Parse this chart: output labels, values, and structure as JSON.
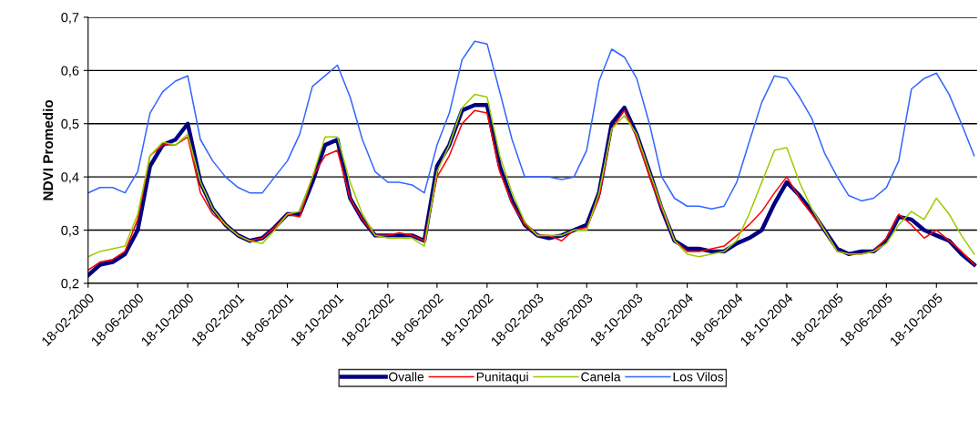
{
  "chart_data": {
    "type": "line",
    "ylabel": "NDVI Promedio",
    "x": [
      "2000-02-18",
      "2000-03-18",
      "2000-04-18",
      "2000-05-18",
      "2000-06-18",
      "2000-07-18",
      "2000-08-18",
      "2000-09-18",
      "2000-10-18",
      "2000-11-18",
      "2000-12-18",
      "2001-01-18",
      "2001-02-18",
      "2001-03-18",
      "2001-04-18",
      "2001-05-18",
      "2001-06-18",
      "2001-07-18",
      "2001-08-18",
      "2001-09-18",
      "2001-10-18",
      "2001-11-18",
      "2001-12-18",
      "2002-01-18",
      "2002-02-18",
      "2002-03-18",
      "2002-04-18",
      "2002-05-18",
      "2002-06-18",
      "2002-07-18",
      "2002-08-18",
      "2002-09-18",
      "2002-10-18",
      "2002-11-18",
      "2002-12-18",
      "2003-01-18",
      "2003-02-18",
      "2003-03-18",
      "2003-04-18",
      "2003-05-18",
      "2003-06-18",
      "2003-07-18",
      "2003-08-18",
      "2003-09-18",
      "2003-10-18",
      "2003-11-18",
      "2003-12-18",
      "2004-01-18",
      "2004-02-18",
      "2004-03-18",
      "2004-04-18",
      "2004-05-18",
      "2004-06-18",
      "2004-07-18",
      "2004-08-18",
      "2004-09-18",
      "2004-10-18",
      "2004-11-18",
      "2004-12-18",
      "2005-01-18",
      "2005-02-18",
      "2005-03-18",
      "2005-04-18",
      "2005-05-18",
      "2005-06-18",
      "2005-07-18",
      "2005-08-18",
      "2005-09-18",
      "2005-10-18",
      "2005-11-18",
      "2005-12-18",
      "2006-01-18"
    ],
    "series": [
      {
        "name": "Ovalle",
        "color": "#000080",
        "values": [
          0.215,
          0.235,
          0.24,
          0.255,
          0.3,
          0.42,
          0.46,
          0.47,
          0.5,
          0.39,
          0.34,
          0.31,
          0.29,
          0.28,
          0.285,
          0.305,
          0.33,
          0.33,
          0.39,
          0.46,
          0.47,
          0.36,
          0.32,
          0.29,
          0.29,
          0.29,
          0.29,
          0.28,
          0.42,
          0.46,
          0.525,
          0.535,
          0.535,
          0.42,
          0.355,
          0.31,
          0.29,
          0.285,
          0.29,
          0.3,
          0.31,
          0.37,
          0.5,
          0.53,
          0.48,
          0.41,
          0.34,
          0.28,
          0.265,
          0.265,
          0.26,
          0.26,
          0.275,
          0.285,
          0.3,
          0.35,
          0.39,
          0.365,
          0.335,
          0.3,
          0.265,
          0.255,
          0.26,
          0.26,
          0.28,
          0.325,
          0.32,
          0.3,
          0.29,
          0.28,
          0.255,
          0.235
        ]
      },
      {
        "name": "Punitaqui",
        "color": "#ff0000",
        "values": [
          0.225,
          0.24,
          0.245,
          0.26,
          0.32,
          0.44,
          0.46,
          0.46,
          0.475,
          0.37,
          0.33,
          0.31,
          0.29,
          0.28,
          0.285,
          0.305,
          0.33,
          0.325,
          0.4,
          0.44,
          0.45,
          0.36,
          0.32,
          0.29,
          0.29,
          0.295,
          0.29,
          0.28,
          0.4,
          0.44,
          0.5,
          0.525,
          0.52,
          0.41,
          0.35,
          0.31,
          0.29,
          0.29,
          0.28,
          0.3,
          0.305,
          0.36,
          0.49,
          0.525,
          0.475,
          0.4,
          0.34,
          0.28,
          0.26,
          0.26,
          0.265,
          0.27,
          0.29,
          0.31,
          0.335,
          0.37,
          0.4,
          0.36,
          0.33,
          0.3,
          0.26,
          0.255,
          0.255,
          0.26,
          0.285,
          0.33,
          0.31,
          0.285,
          0.3,
          0.28,
          0.26,
          0.235
        ]
      },
      {
        "name": "Canela",
        "color": "#99cc00",
        "values": [
          0.25,
          0.26,
          0.265,
          0.27,
          0.33,
          0.44,
          0.465,
          0.46,
          0.48,
          0.39,
          0.34,
          0.31,
          0.29,
          0.28,
          0.275,
          0.3,
          0.33,
          0.335,
          0.4,
          0.475,
          0.475,
          0.39,
          0.33,
          0.29,
          0.285,
          0.285,
          0.285,
          0.27,
          0.41,
          0.46,
          0.53,
          0.555,
          0.55,
          0.44,
          0.37,
          0.315,
          0.29,
          0.29,
          0.29,
          0.3,
          0.3,
          0.37,
          0.49,
          0.515,
          0.48,
          0.41,
          0.345,
          0.28,
          0.255,
          0.25,
          0.255,
          0.26,
          0.28,
          0.33,
          0.39,
          0.45,
          0.455,
          0.39,
          0.34,
          0.3,
          0.26,
          0.255,
          0.255,
          0.26,
          0.275,
          0.31,
          0.335,
          0.32,
          0.36,
          0.33,
          0.29,
          0.255
        ]
      },
      {
        "name": "Los Vilos",
        "color": "#3366ff",
        "values": [
          0.37,
          0.38,
          0.38,
          0.37,
          0.41,
          0.52,
          0.56,
          0.58,
          0.59,
          0.47,
          0.43,
          0.4,
          0.38,
          0.37,
          0.37,
          0.4,
          0.43,
          0.48,
          0.57,
          0.59,
          0.61,
          0.55,
          0.47,
          0.41,
          0.39,
          0.39,
          0.385,
          0.37,
          0.46,
          0.52,
          0.62,
          0.655,
          0.65,
          0.56,
          0.47,
          0.4,
          0.4,
          0.4,
          0.395,
          0.4,
          0.45,
          0.58,
          0.64,
          0.625,
          0.585,
          0.5,
          0.4,
          0.36,
          0.345,
          0.345,
          0.34,
          0.345,
          0.39,
          0.465,
          0.54,
          0.59,
          0.585,
          0.55,
          0.51,
          0.445,
          0.4,
          0.365,
          0.355,
          0.36,
          0.38,
          0.43,
          0.565,
          0.585,
          0.595,
          0.555,
          0.5,
          0.44
        ]
      }
    ],
    "xlim": [
      "2000-02-18",
      "2006-01-25"
    ],
    "xticks": [
      {
        "value": "2000-02-18",
        "label": "18-02-2000"
      },
      {
        "value": "2000-06-18",
        "label": "18-06-2000"
      },
      {
        "value": "2000-10-18",
        "label": "18-10-2000"
      },
      {
        "value": "2001-02-18",
        "label": "18-02-2001"
      },
      {
        "value": "2001-06-18",
        "label": "18-06-2001"
      },
      {
        "value": "2001-10-18",
        "label": "18-10-2001"
      },
      {
        "value": "2002-02-18",
        "label": "18-02-2002"
      },
      {
        "value": "2002-06-18",
        "label": "18-06-2002"
      },
      {
        "value": "2002-10-18",
        "label": "18-10-2002"
      },
      {
        "value": "2003-02-18",
        "label": "18-02-2003"
      },
      {
        "value": "2003-06-18",
        "label": "18-06-2003"
      },
      {
        "value": "2003-10-18",
        "label": "18-10-2003"
      },
      {
        "value": "2004-02-18",
        "label": "18-02-2004"
      },
      {
        "value": "2004-06-18",
        "label": "18-06-2004"
      },
      {
        "value": "2004-10-18",
        "label": "18-10-2004"
      },
      {
        "value": "2005-02-18",
        "label": "18-02-2005"
      },
      {
        "value": "2005-06-18",
        "label": "18-06-2005"
      },
      {
        "value": "2005-10-18",
        "label": "18-10-2005"
      }
    ],
    "ylim": [
      0.2,
      0.7
    ],
    "yticks": [
      {
        "value": 0.2,
        "label": "0,2"
      },
      {
        "value": 0.3,
        "label": "0,3"
      },
      {
        "value": 0.4,
        "label": "0,4"
      },
      {
        "value": 0.5,
        "label": "0,5"
      },
      {
        "value": 0.6,
        "label": "0,6"
      },
      {
        "value": 0.7,
        "label": "0,7"
      }
    ],
    "grid": "y",
    "legend": "bottom",
    "marker": "none",
    "line_style": "solid"
  }
}
